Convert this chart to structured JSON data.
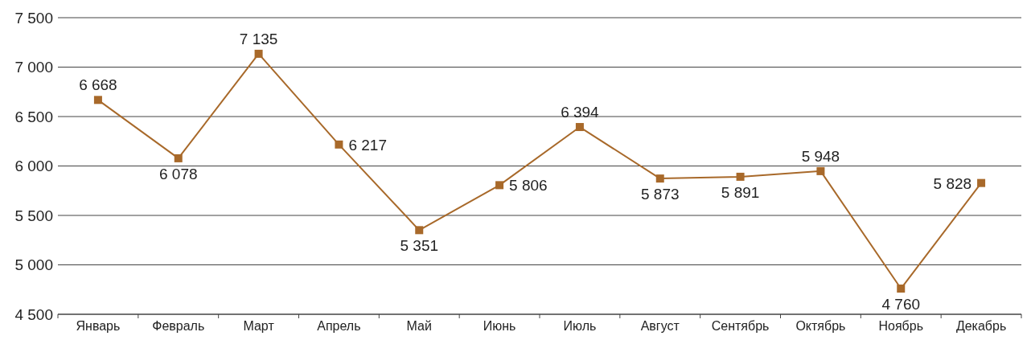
{
  "chart_data": {
    "type": "line",
    "categories": [
      "Январь",
      "Февраль",
      "Март",
      "Апрель",
      "Май",
      "Июнь",
      "Июль",
      "Август",
      "Сентябрь",
      "Октябрь",
      "Ноябрь",
      "Декабрь"
    ],
    "series": [
      {
        "color": "#a8692a",
        "values": [
          6668,
          6078,
          7135,
          6217,
          5351,
          5806,
          6394,
          5873,
          5891,
          5948,
          4760,
          5828
        ],
        "value_labels": [
          "6 668",
          "6 078",
          "7 135",
          "6 217",
          "5 351",
          "5 806",
          "6 394",
          "5 873",
          "5 891",
          "5 948",
          "4 760",
          "5 828"
        ]
      }
    ],
    "ylim": [
      4500,
      7500
    ],
    "yticks": [
      {
        "value": 4500,
        "label": "4 500"
      },
      {
        "value": 5000,
        "label": "5 000"
      },
      {
        "value": 5500,
        "label": "5 500"
      },
      {
        "value": 6000,
        "label": "6 000"
      },
      {
        "value": 6500,
        "label": "6 500"
      },
      {
        "value": 7000,
        "label": "7 000"
      },
      {
        "value": 7500,
        "label": "7 500"
      }
    ],
    "grid": "y",
    "marker": "square",
    "line_style": "solid"
  }
}
